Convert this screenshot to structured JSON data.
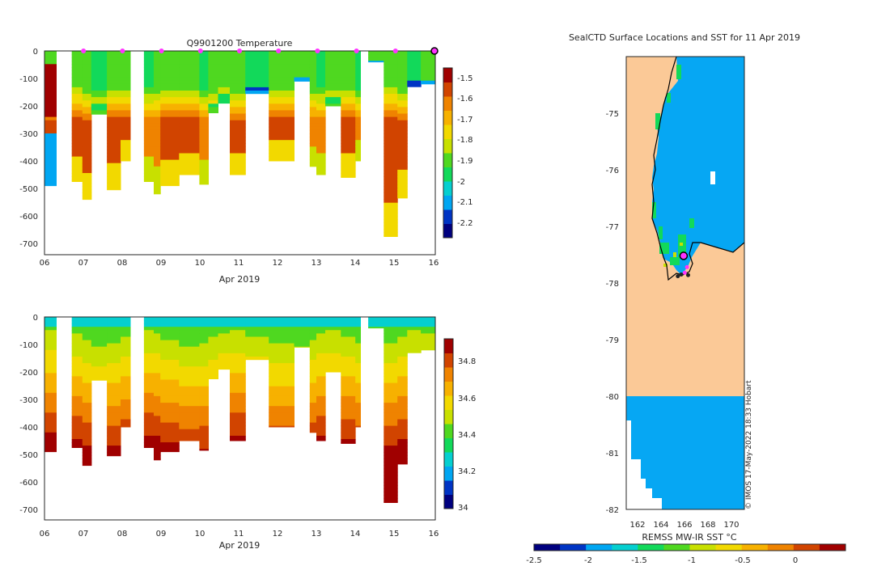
{
  "colors": {
    "land": "#fbc997",
    "ocean_sst": "#06a7f3",
    "marker": "#ff33ff",
    "coast": "#000000",
    "frame": "#262626",
    "colormap": [
      "#00007f",
      "#0034c4",
      "#00a6f2",
      "#05cfd0",
      "#12d95a",
      "#4fd820",
      "#c8e000",
      "#f2d900",
      "#f7b100",
      "#ef8300",
      "#d14400",
      "#a00000"
    ]
  },
  "chart_data": [
    {
      "type": "heatmap",
      "title": "Q9901200  Temperature",
      "xlabel": "Apr 2019",
      "ylabel": "",
      "x_ticks": [
        "06",
        "07",
        "08",
        "09",
        "10",
        "11",
        "12",
        "13",
        "14",
        "15",
        "16"
      ],
      "y_ticks": [
        "0",
        "-100",
        "-200",
        "-300",
        "-400",
        "-500",
        "-600",
        "-700"
      ],
      "xlim": [
        6,
        16.05
      ],
      "ylim": [
        -740,
        0
      ],
      "profile_markers_day": [
        7,
        8,
        9,
        10,
        11,
        12,
        13,
        14,
        15
      ],
      "current_marker_day": 16,
      "colorbar": {
        "ticks": [
          "-1.5",
          "-1.6",
          "-1.7",
          "-1.8",
          "-1.9",
          "-2",
          "-2.1",
          "-2.2"
        ],
        "range": [
          -2.3,
          -1.44
        ]
      },
      "profiles": [
        {
          "day_start": 6.0,
          "day_end": 6.3,
          "max_depth": 490
        },
        {
          "day_start": 6.7,
          "day_end": 6.97,
          "max_depth": 475
        },
        {
          "day_start": 6.97,
          "day_end": 7.2,
          "max_depth": 540
        },
        {
          "day_start": 7.2,
          "day_end": 7.6,
          "max_depth": 230
        },
        {
          "day_start": 7.6,
          "day_end": 7.95,
          "max_depth": 505
        },
        {
          "day_start": 7.95,
          "day_end": 8.2,
          "max_depth": 400
        },
        {
          "day_start": 8.55,
          "day_end": 8.8,
          "max_depth": 475
        },
        {
          "day_start": 8.8,
          "day_end": 8.97,
          "max_depth": 520
        },
        {
          "day_start": 8.97,
          "day_end": 9.45,
          "max_depth": 490
        },
        {
          "day_start": 9.45,
          "day_end": 9.97,
          "max_depth": 450
        },
        {
          "day_start": 9.97,
          "day_end": 10.2,
          "max_depth": 485
        },
        {
          "day_start": 10.2,
          "day_end": 10.45,
          "max_depth": 225
        },
        {
          "day_start": 10.45,
          "day_end": 10.75,
          "max_depth": 190
        },
        {
          "day_start": 10.75,
          "day_end": 11.15,
          "max_depth": 450
        },
        {
          "day_start": 11.15,
          "day_end": 11.75,
          "max_depth": 155
        },
        {
          "day_start": 11.75,
          "day_end": 12.4,
          "max_depth": 400
        },
        {
          "day_start": 12.4,
          "day_end": 12.8,
          "max_depth": 110
        },
        {
          "day_start": 12.8,
          "day_end": 12.97,
          "max_depth": 420
        },
        {
          "day_start": 12.97,
          "day_end": 13.2,
          "max_depth": 450
        },
        {
          "day_start": 13.2,
          "day_end": 13.6,
          "max_depth": 200
        },
        {
          "day_start": 13.6,
          "day_end": 13.97,
          "max_depth": 460
        },
        {
          "day_start": 13.97,
          "day_end": 14.1,
          "max_depth": 400
        },
        {
          "day_start": 14.3,
          "day_end": 14.7,
          "max_depth": 40
        },
        {
          "day_start": 14.7,
          "day_end": 15.05,
          "max_depth": 675
        },
        {
          "day_start": 15.05,
          "day_end": 15.3,
          "max_depth": 535
        },
        {
          "day_start": 15.3,
          "day_end": 15.65,
          "max_depth": 130
        },
        {
          "day_start": 15.65,
          "day_end": 16.05,
          "max_depth": 120
        }
      ]
    },
    {
      "type": "heatmap",
      "title": "",
      "xlabel": "Apr 2019",
      "ylabel": "",
      "x_ticks": [
        "06",
        "07",
        "08",
        "09",
        "10",
        "11",
        "12",
        "13",
        "14",
        "15",
        "16"
      ],
      "y_ticks": [
        "0",
        "-100",
        "-200",
        "-300",
        "-400",
        "-500",
        "-600",
        "-700"
      ],
      "xlim": [
        6,
        16.05
      ],
      "ylim": [
        -740,
        0
      ],
      "colorbar": {
        "ticks": [
          "34.8",
          "34.6",
          "34.4",
          "34.2",
          "34"
        ],
        "range": [
          33.98,
          34.92
        ]
      }
    },
    {
      "type": "heatmap",
      "title": "SealCTD Surface Locations and SST for 11 Apr 2019",
      "xlabel": "",
      "ylabel": "",
      "x_ticks": [
        "162",
        "164",
        "166",
        "168",
        "170"
      ],
      "y_ticks": [
        "-75",
        "-76",
        "-77",
        "-78",
        "-79",
        "-80",
        "-81",
        "-82"
      ],
      "xlim": [
        161,
        171.3
      ],
      "ylim": [
        -82,
        -74
      ],
      "seal_positions": [
        {
          "lon": 166.0,
          "lat": -77.52
        },
        {
          "lon": 166.3,
          "lat": -77.72
        },
        {
          "lon": 166.1,
          "lat": -77.82
        },
        {
          "lon": 166.4,
          "lat": -77.86
        },
        {
          "lon": 165.8,
          "lat": -77.85
        },
        {
          "lon": 165.5,
          "lat": -77.88
        }
      ],
      "colorbar": {
        "label": "REMSS MW-IR SST °C",
        "ticks": [
          "-2.5",
          "-2",
          "-1.5",
          "-1",
          "-0.5",
          "0"
        ],
        "range": [
          -2.5,
          0.45
        ]
      },
      "credit": "© IMOS 17-May-2022 18:33 Hobart"
    }
  ]
}
